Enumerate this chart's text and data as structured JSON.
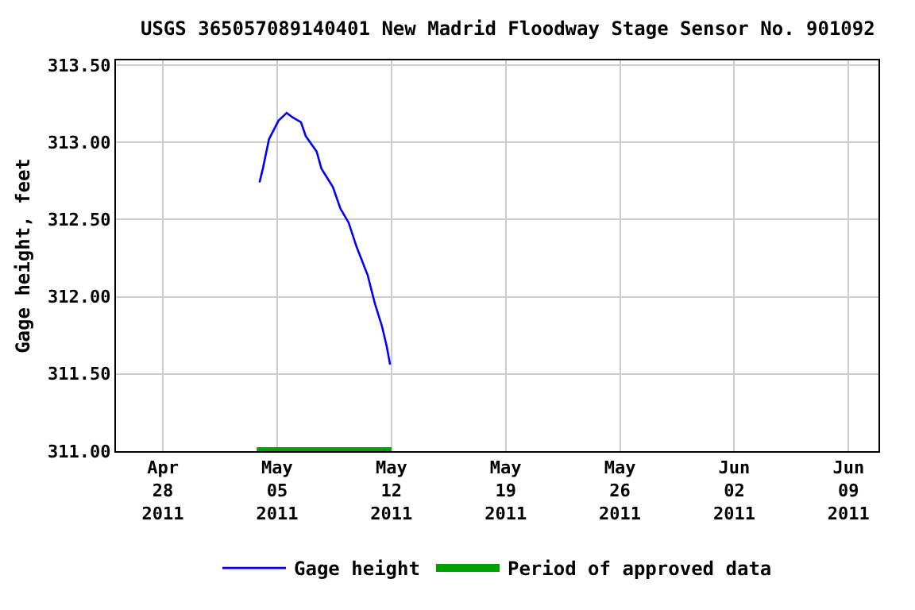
{
  "chart_data": {
    "type": "line",
    "title": "USGS 365057089140401 New Madrid Floodway Stage Sensor No. 901092",
    "ylabel": "Gage height, feet",
    "xlim": [
      "2011-04-25T03:00",
      "2011-06-10T20:00"
    ],
    "ylim": [
      311,
      313.53
    ],
    "xticks": [
      {
        "value": "2011-04-28",
        "label": "Apr\n28\n2011"
      },
      {
        "value": "2011-05-05",
        "label": "May\n05\n2011"
      },
      {
        "value": "2011-05-12",
        "label": "May\n12\n2011"
      },
      {
        "value": "2011-05-19",
        "label": "May\n19\n2011"
      },
      {
        "value": "2011-05-26",
        "label": "May\n26\n2011"
      },
      {
        "value": "2011-06-02",
        "label": "Jun\n02\n2011"
      },
      {
        "value": "2011-06-09",
        "label": "Jun\n09\n2011"
      }
    ],
    "yticks": [
      {
        "value": 311,
        "label": "311.00"
      },
      {
        "value": 311.5,
        "label": "311.50"
      },
      {
        "value": 312,
        "label": "312.00"
      },
      {
        "value": 312.5,
        "label": "312.50"
      },
      {
        "value": 313,
        "label": "313.00"
      },
      {
        "value": 313.5,
        "label": "313.50"
      }
    ],
    "grid": true,
    "legend": "bottom",
    "line_style": "solid",
    "marker": "none",
    "x": [
      "2011-05-03T22:00",
      "2011-05-04T03:00",
      "2011-05-04T12:00",
      "2011-05-05T02:00",
      "2011-05-05T14:00",
      "2011-05-05T23:00",
      "2011-05-06T11:00",
      "2011-05-06T18:00",
      "2011-05-07T10:00",
      "2011-05-07T17:00",
      "2011-05-08T10:00",
      "2011-05-08T21:00",
      "2011-05-09T09:00",
      "2011-05-09T21:00",
      "2011-05-10T13:00",
      "2011-05-11T00:00",
      "2011-05-11T10:00",
      "2011-05-11T17:00",
      "2011-05-11T22:00"
    ],
    "series": [
      {
        "name": "Gage height",
        "color": "#0000ff",
        "values": [
          312.74,
          312.83,
          313.02,
          313.14,
          313.19,
          313.16,
          313.13,
          313.04,
          312.94,
          312.83,
          312.71,
          312.57,
          312.48,
          312.32,
          312.14,
          311.95,
          311.81,
          311.68,
          311.56
        ]
      },
      {
        "name": "Period of approved data",
        "color": "#00a000",
        "x": [
          "2011-05-03T18:00",
          "2011-05-12T00:00"
        ],
        "values": [
          311,
          311
        ]
      }
    ]
  }
}
